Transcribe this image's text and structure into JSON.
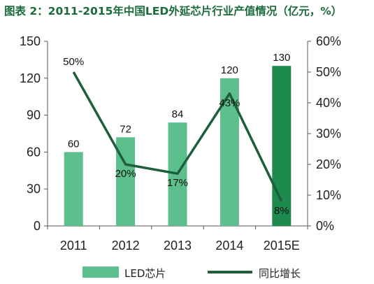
{
  "chart_data": {
    "type": "bar+line",
    "title": "图表 2：2011-2015年中国LED外延芯片行业产值情况（亿元，%）",
    "categories": [
      "2011",
      "2012",
      "2013",
      "2014",
      "2015E"
    ],
    "series": [
      {
        "name": "LED芯片",
        "type": "bar",
        "axis": "left",
        "values": [
          60,
          72,
          84,
          120,
          130
        ],
        "labels": [
          "60",
          "72",
          "84",
          "120",
          "130"
        ]
      },
      {
        "name": "同比增长",
        "type": "line",
        "axis": "right",
        "values": [
          50,
          20,
          17,
          43,
          8
        ],
        "labels": [
          "50%",
          "20%",
          "17%",
          "43%",
          "8%"
        ]
      }
    ],
    "y_left": {
      "min": 0,
      "max": 150,
      "ticks": [
        "0",
        "30",
        "60",
        "90",
        "120",
        "150"
      ]
    },
    "y_right": {
      "min": 0,
      "max": 60,
      "ticks": [
        "0%",
        "10%",
        "20%",
        "30%",
        "40%",
        "50%",
        "60%"
      ]
    },
    "colors": {
      "bar": "#5cbf8c",
      "bar_last": "#1e8a4e",
      "line": "#1f5e3a",
      "title": "#1a6b3a"
    },
    "legend": "bottom",
    "grid": false
  }
}
